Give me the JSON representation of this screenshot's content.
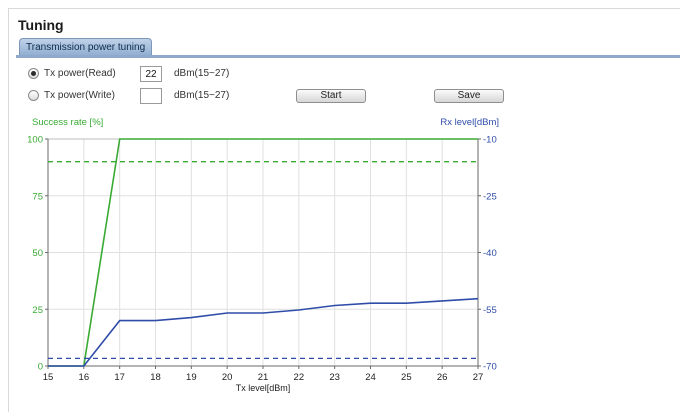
{
  "page": {
    "title": "Tuning"
  },
  "tabs": [
    {
      "label": "Transmission power tuning",
      "active": true
    }
  ],
  "form": {
    "read": {
      "label": "Tx power(Read)",
      "checked": true,
      "value": "22",
      "range": "dBm(15~27)"
    },
    "write": {
      "label": "Tx power(Write)",
      "checked": false,
      "value": "",
      "range": "dBm(15~27)"
    },
    "start_label": "Start",
    "save_label": "Save"
  },
  "colors": {
    "success": "#3aaa35",
    "rx": "#2f4da8",
    "tab_accent": "#8ea9cb"
  },
  "chart_data": {
    "type": "line",
    "xlabel": "Tx level[dBm]",
    "ylabel_left": "Success rate [%]",
    "ylabel_right": "Rx level[dBm]",
    "x": [
      15,
      16,
      17,
      18,
      19,
      20,
      21,
      22,
      23,
      24,
      25,
      26,
      27
    ],
    "xlim": [
      15,
      27
    ],
    "ylim_left": [
      0,
      100
    ],
    "ylim_right": [
      -70,
      -10
    ],
    "left_ticks": [
      0,
      25,
      50,
      75,
      100
    ],
    "right_ticks": [
      -70,
      -55,
      -40,
      -25,
      -10
    ],
    "grid": true,
    "series": [
      {
        "axis": "left",
        "style": "solid",
        "color": "#3aaa35",
        "x": [
          15,
          16,
          17,
          27
        ],
        "values": [
          0,
          0,
          100,
          100
        ]
      },
      {
        "axis": "left",
        "style": "dashed",
        "color": "#3aaa35",
        "x": [
          15,
          27
        ],
        "values": [
          90,
          90
        ]
      },
      {
        "axis": "right",
        "style": "solid",
        "color": "#2f4da8",
        "x": [
          15,
          16,
          17,
          18,
          19,
          20,
          21,
          22,
          23,
          24,
          25,
          26,
          27
        ],
        "values": [
          -70,
          -70,
          -58,
          -58,
          -57.2,
          -56,
          -56,
          -55.2,
          -54,
          -53.4,
          -53.4,
          -52.8,
          -52.2
        ]
      },
      {
        "axis": "right",
        "style": "dashed",
        "color": "#2f4da8",
        "x": [
          15,
          27
        ],
        "values": [
          -68,
          -68
        ]
      }
    ]
  }
}
